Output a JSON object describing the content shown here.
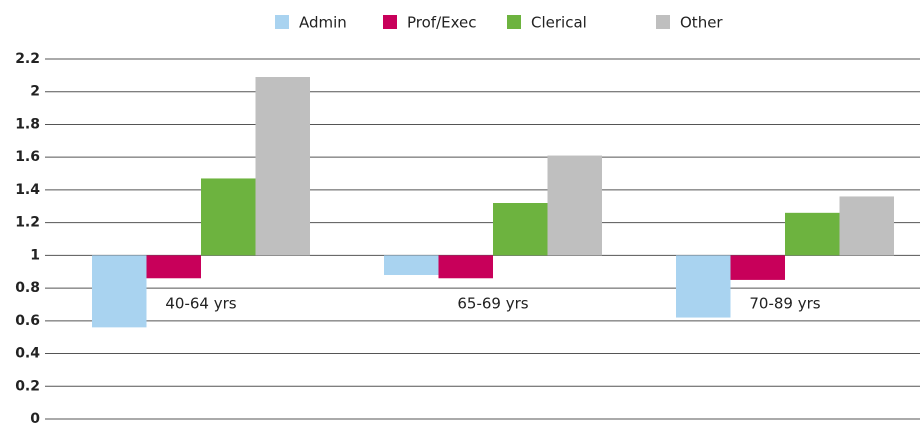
{
  "chart_data": {
    "type": "bar",
    "categories": [
      "40-64 yrs",
      "65-69 yrs",
      "70-89 yrs"
    ],
    "baseline": 1,
    "series": [
      {
        "name": "Admin",
        "color": "#a9d3f0",
        "values": [
          0.56,
          0.88,
          0.62
        ]
      },
      {
        "name": "Prof/Exec",
        "color": "#c8005a",
        "values": [
          0.86,
          0.86,
          0.85
        ]
      },
      {
        "name": "Clerical",
        "color": "#6db33f",
        "values": [
          1.47,
          1.32,
          1.26
        ]
      },
      {
        "name": "Other",
        "color": "#bfbfbf",
        "values": [
          2.09,
          1.61,
          1.36
        ]
      }
    ],
    "ylim": [
      0,
      2.2
    ],
    "yticks": [
      0,
      0.2,
      0.4,
      0.6,
      0.8,
      1,
      1.2,
      1.4,
      1.6,
      1.8,
      2,
      2.2
    ],
    "grid": true,
    "legend": "top"
  }
}
